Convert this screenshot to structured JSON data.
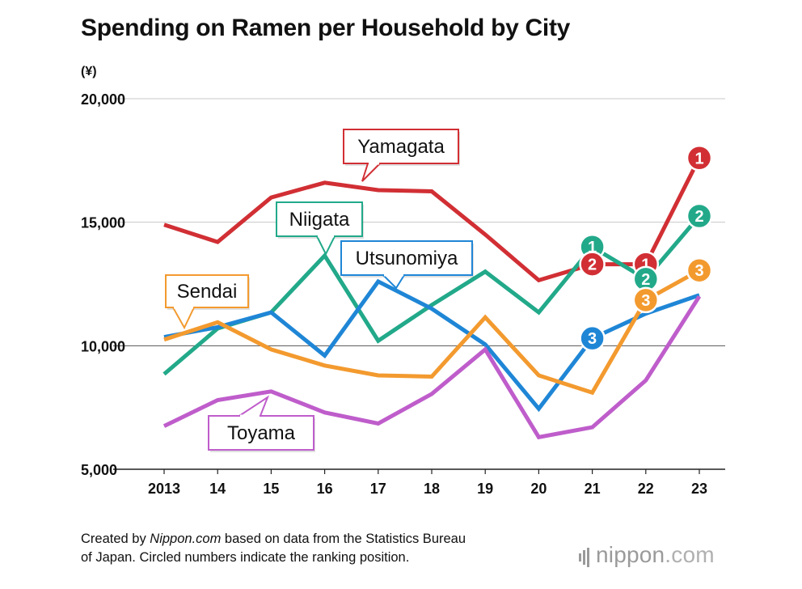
{
  "chart_data": {
    "type": "line",
    "title": "Spending on Ramen per Household by City",
    "ylabel": "(¥)",
    "xlabel": "",
    "ylim": [
      5000,
      20000
    ],
    "yticks": [
      5000,
      10000,
      15000,
      20000
    ],
    "ytick_labels": [
      "5,000",
      "10,000",
      "15,000",
      "20,000"
    ],
    "categories": [
      "2013",
      "14",
      "15",
      "16",
      "17",
      "18",
      "19",
      "20",
      "21",
      "22",
      "23"
    ],
    "series": [
      {
        "name": "Yamagata",
        "color": "#d12f34",
        "values": [
          14900,
          14200,
          16000,
          16600,
          16300,
          16250,
          14500,
          12650,
          13300,
          13300,
          17600
        ]
      },
      {
        "name": "Niigata",
        "color": "#22a98a",
        "values": [
          8850,
          10700,
          11350,
          13650,
          10200,
          11650,
          13000,
          11350,
          14000,
          12700,
          15250
        ]
      },
      {
        "name": "Utsunomiya",
        "color": "#1f86d6",
        "values": [
          10350,
          10750,
          11350,
          9600,
          12600,
          11500,
          10050,
          7450,
          10300,
          11300,
          12050
        ]
      },
      {
        "name": "Sendai",
        "color": "#f39a2f",
        "values": [
          10250,
          10950,
          9850,
          9200,
          8800,
          8750,
          11150,
          8800,
          8100,
          11850,
          13050
        ]
      },
      {
        "name": "Toyama",
        "color": "#bf5dcb",
        "values": [
          6750,
          7800,
          8150,
          7300,
          6850,
          8050,
          9850,
          6300,
          6700,
          8600,
          12000
        ]
      }
    ],
    "rank_markers": [
      {
        "series": "Niigata",
        "year": "21",
        "rank": "1"
      },
      {
        "series": "Yamagata",
        "year": "21",
        "rank": "2"
      },
      {
        "series": "Utsunomiya",
        "year": "21",
        "rank": "3"
      },
      {
        "series": "Yamagata",
        "year": "22",
        "rank": "1"
      },
      {
        "series": "Niigata",
        "year": "22",
        "rank": "2"
      },
      {
        "series": "Sendai",
        "year": "22",
        "rank": "3"
      },
      {
        "series": "Yamagata",
        "year": "23",
        "rank": "1"
      },
      {
        "series": "Niigata",
        "year": "23",
        "rank": "2"
      },
      {
        "series": "Sendai",
        "year": "23",
        "rank": "3"
      }
    ]
  },
  "footer": {
    "line1_pre": "Created by ",
    "line1_source": "Nippon.com",
    "line1_post": " based on data from the Statistics Bureau",
    "line2": "of Japan. Circled numbers indicate the ranking position."
  },
  "brand": {
    "name": "nippon",
    "suffix": ".com"
  }
}
